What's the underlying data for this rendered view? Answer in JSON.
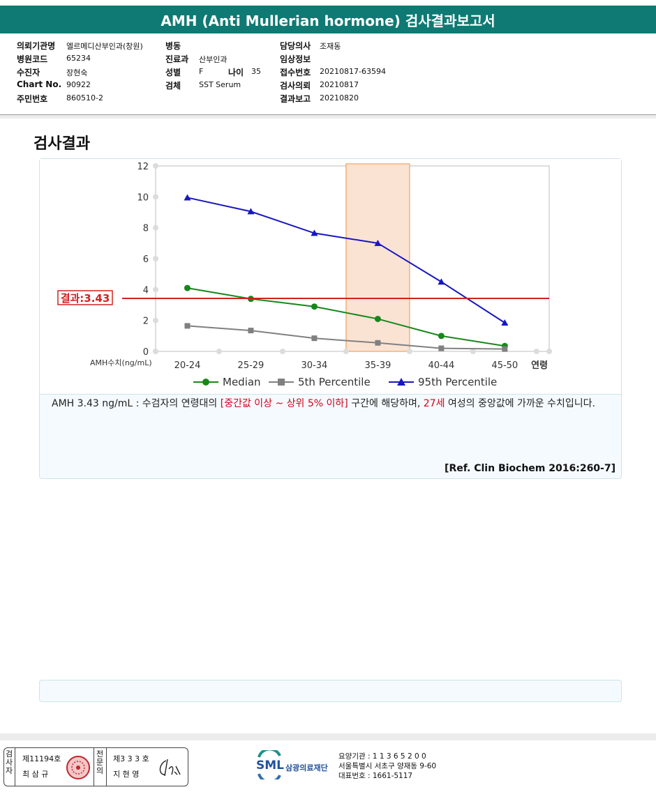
{
  "report": {
    "title": "AMH (Anti Mullerian hormone) 검사결과보고서"
  },
  "patient": {
    "col1": [
      {
        "label": "의뢰기관명",
        "value": "엘르메디산부인과(창원)"
      },
      {
        "label": "병원코드",
        "value": "65234"
      },
      {
        "label": "수진자",
        "value": "장현숙"
      },
      {
        "label": "Chart No.",
        "value": "90922"
      },
      {
        "label": "주민번호",
        "value": "860510-2"
      }
    ],
    "col2": [
      {
        "label": "병동",
        "value": ""
      },
      {
        "label": "진료과",
        "value": "산부인과"
      },
      {
        "label": "성별",
        "value": "F"
      },
      {
        "label": "검체",
        "value": "SST Serum"
      }
    ],
    "age_label": "나이",
    "age_value": "35",
    "col3": [
      {
        "label": "담당의사",
        "value": "조재동"
      },
      {
        "label": "임상정보",
        "value": ""
      },
      {
        "label": "접수번호",
        "value": "20210817-63594"
      },
      {
        "label": "검사의뢰",
        "value": "20210817"
      },
      {
        "label": "결과보고",
        "value": "20210820"
      }
    ]
  },
  "section_title": "검사결과",
  "chart_data": {
    "type": "line",
    "categories": [
      "20-24",
      "25-29",
      "30-34",
      "35-39",
      "40-44",
      "45-50"
    ],
    "series": [
      {
        "name": "Median",
        "color": "#17871a",
        "marker": "circle",
        "values": [
          4.1,
          3.4,
          2.9,
          2.1,
          1.0,
          0.35
        ]
      },
      {
        "name": "5th Percentile",
        "color": "#808080",
        "marker": "square",
        "values": [
          1.65,
          1.35,
          0.85,
          0.55,
          0.2,
          0.15
        ]
      },
      {
        "name": "95th Percentile",
        "color": "#1717c0",
        "marker": "triangle",
        "values": [
          9.95,
          9.05,
          7.65,
          7.0,
          4.5,
          1.85
        ]
      }
    ],
    "ylim": [
      0,
      12
    ],
    "yticks": [
      "0",
      "2",
      "4",
      "6",
      "8",
      "10",
      "12"
    ],
    "ylabel": "AMH수치(ng/mL)",
    "xlabel": "연령",
    "highlight_category": "35-39",
    "result_value": 3.43,
    "result_label": "결과:3.43",
    "legend_position": "bottom"
  },
  "description": {
    "part1": "AMH  3.43 ng/mL : 수검자의 연령대의 ",
    "red1": "[중간값 이상 ~ 상위 5% 이하]",
    "part2": "  구간에 해당하며, ",
    "red2": "27세",
    "part3": " 여성의 중앙값에 가까운 수치입니다.",
    "reference": "[Ref. Clin Biochem 2016:260-7]"
  },
  "footer": {
    "examiner_vertical": [
      "검",
      "사",
      "자"
    ],
    "examiner_no": "제11194호",
    "examiner_name": "최 삼 규",
    "specialist_vertical": [
      "전",
      "문",
      "의"
    ],
    "specialist_no": "제3 3 3 호",
    "specialist_name": "지 현 영",
    "logo_text": "SML",
    "foundation_name": "삼광의료재단",
    "org_lines": [
      "요양기관 : 1 1 3 6 5 2 0 0",
      "서울특별시 서초구 양재동 9-60",
      "대표번호 : 1661-5117"
    ]
  }
}
